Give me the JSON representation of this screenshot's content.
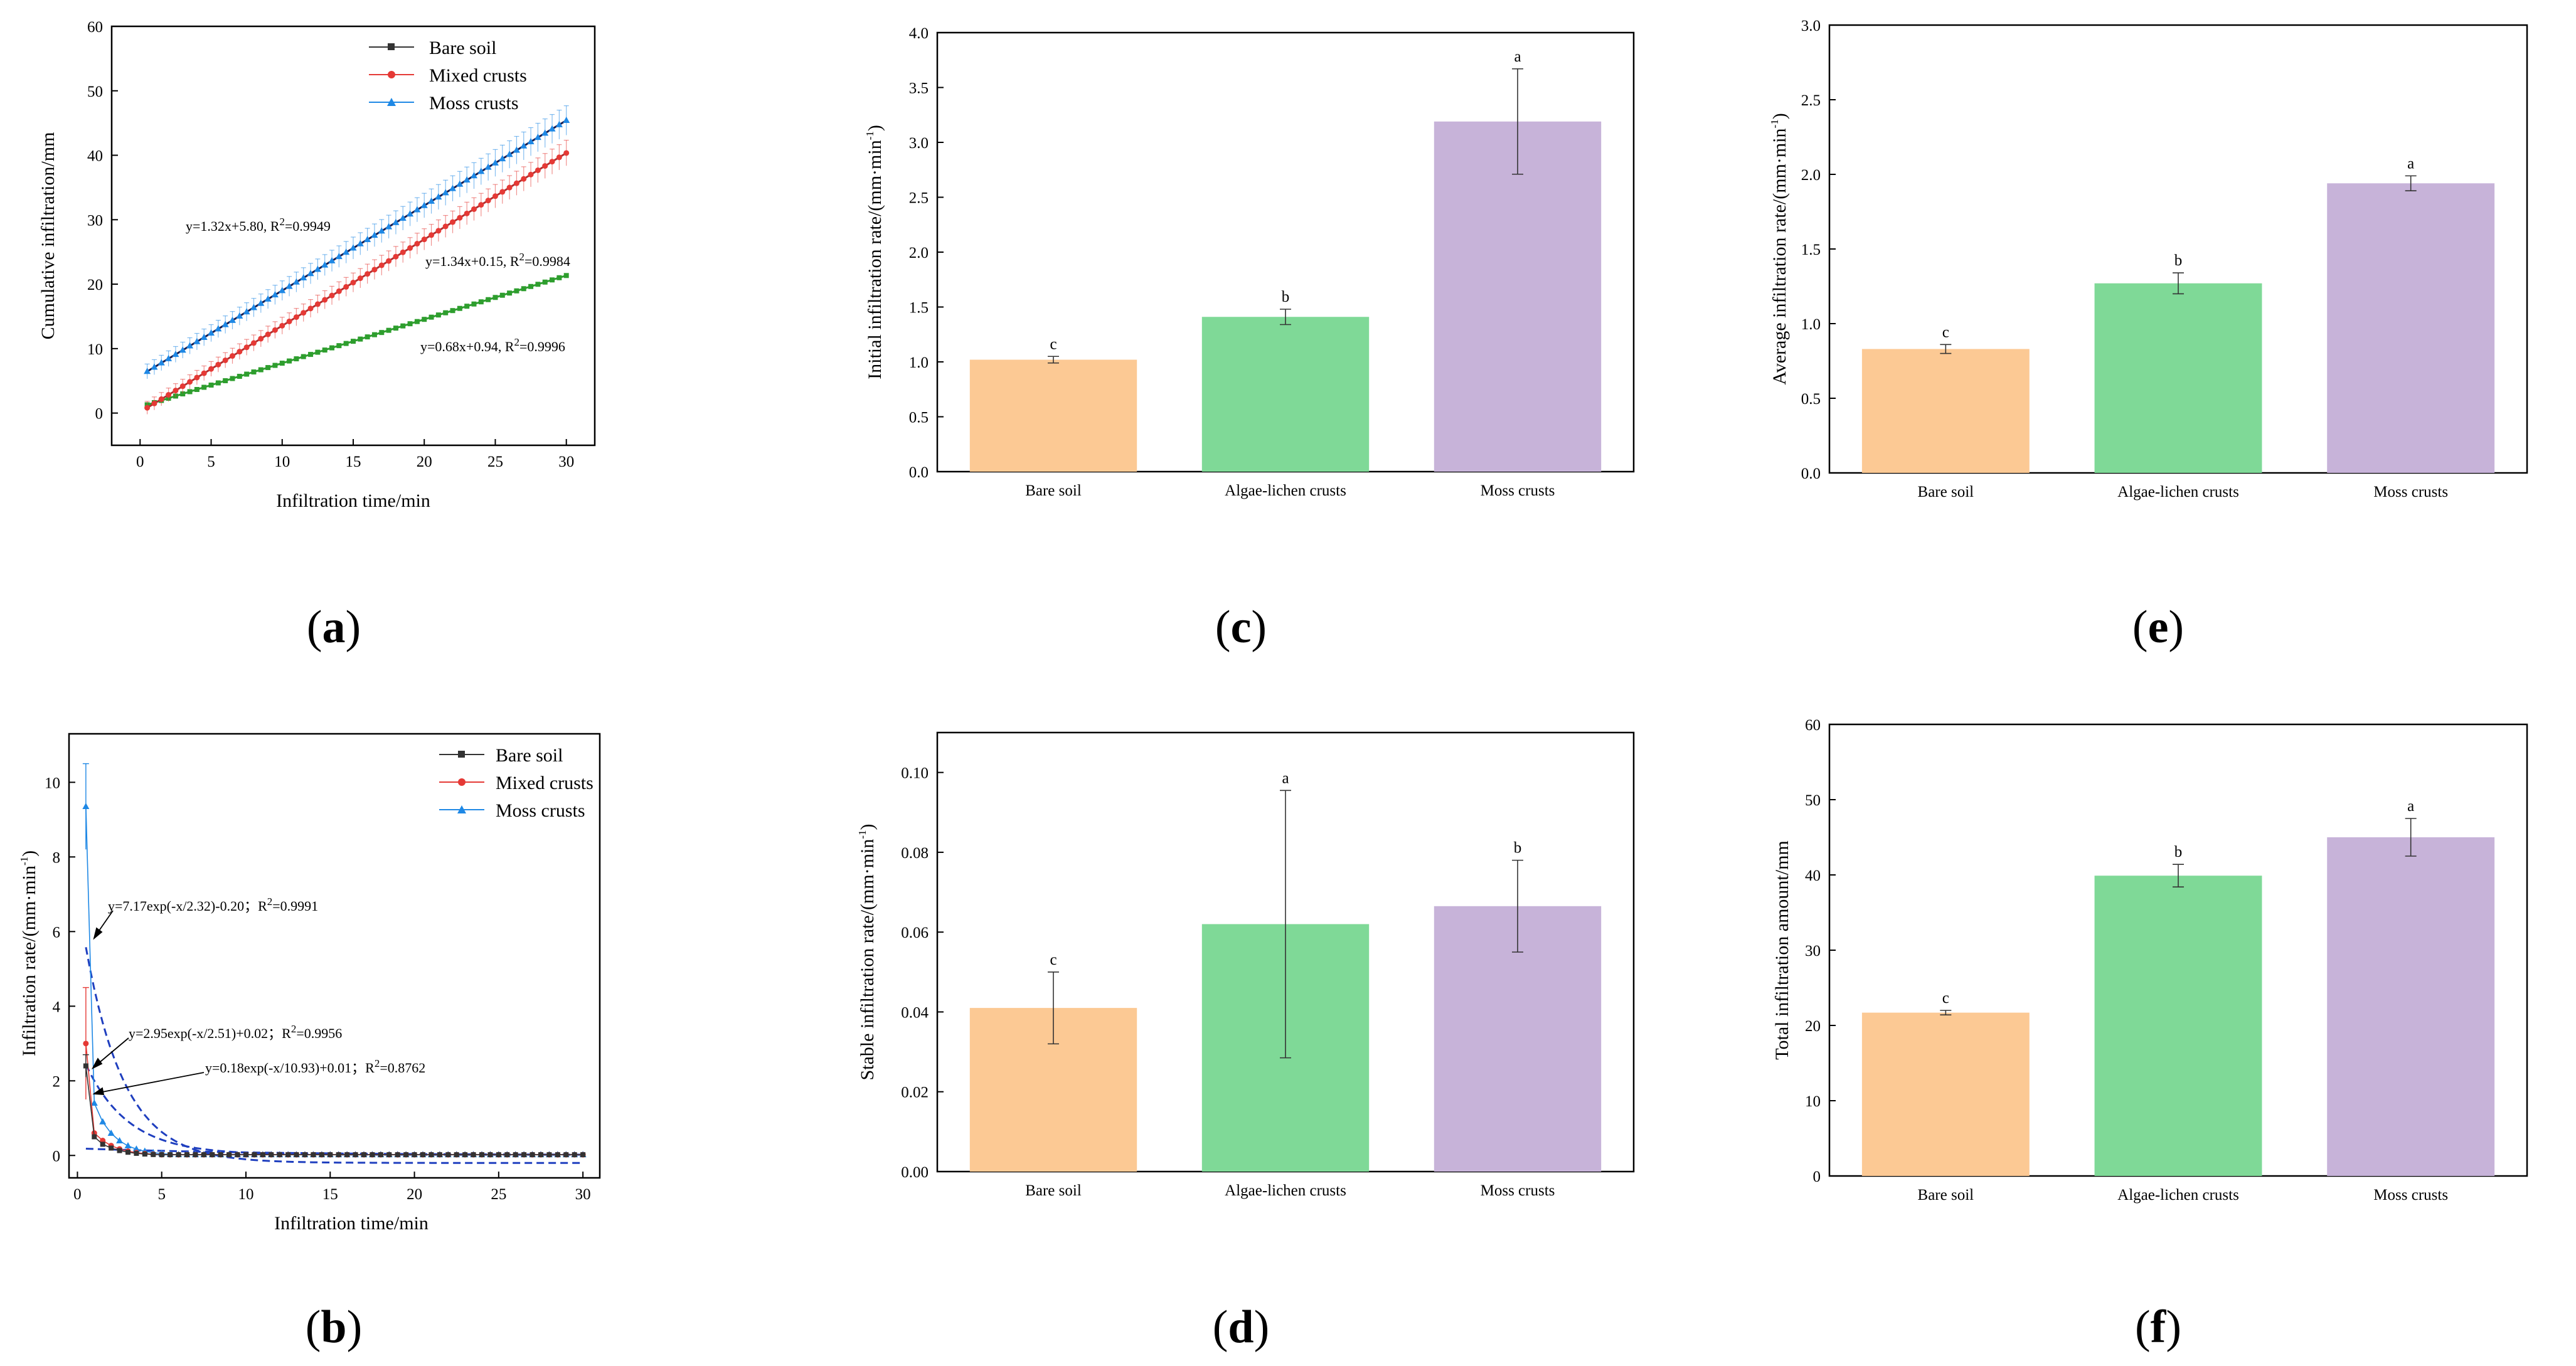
{
  "figure": {
    "panel_labels": {
      "a": {
        "open": "(",
        "letter": "a",
        "close": ")"
      },
      "b": {
        "open": "(",
        "letter": "b",
        "close": ")"
      },
      "c": {
        "open": "(",
        "letter": "c",
        "close": ")"
      },
      "d": {
        "open": "(",
        "letter": "d",
        "close": ")"
      },
      "e": {
        "open": "(",
        "letter": "e",
        "close": ")"
      },
      "f": {
        "open": "(",
        "letter": "f",
        "close": ")"
      }
    }
  },
  "chart_data": [
    {
      "id": "a",
      "type": "line",
      "xlabel": "Infiltration time/min",
      "ylabel": "Cumulative infiltration/mm",
      "xlim": [
        -2,
        32
      ],
      "ylim": [
        -5,
        60
      ],
      "xticks": [
        0,
        5,
        10,
        15,
        20,
        25,
        30
      ],
      "yticks": [
        0,
        10,
        20,
        30,
        40,
        50,
        60
      ],
      "legend": [
        "Bare soil",
        "Mixed crusts",
        "Moss crusts"
      ],
      "legend_position": "top-right",
      "colors": {
        "bare": "#333333",
        "mixed": "#e53935",
        "moss": "#1e88e5",
        "bare_fit": "#2e9e2e",
        "moss_fit": "#1a1a4a",
        "mixed_fit": "#b03030"
      },
      "series": [
        {
          "name": "Bare soil",
          "x_range": [
            0.5,
            30
          ],
          "fit_slope": 0.68,
          "fit_intercept": 0.94,
          "error": 0.2
        },
        {
          "name": "Mixed crusts",
          "x_range": [
            0.5,
            30
          ],
          "fit_slope": 1.34,
          "fit_intercept": 0.15,
          "error": 2.0
        },
        {
          "name": "Moss crusts",
          "x_range": [
            0.5,
            30
          ],
          "fit_slope": 1.32,
          "fit_intercept": 5.8,
          "error": 2.3
        }
      ],
      "equations": [
        {
          "before": "y=1.32x+5.80, R",
          "sup": "2",
          "after": "=0.9949"
        },
        {
          "before": "y=1.34x+0.15, R",
          "sup": "2",
          "after": "=0.9984"
        },
        {
          "before": "y=0.68x+0.94, R",
          "sup": "2",
          "after": "=0.9996"
        }
      ]
    },
    {
      "id": "b",
      "type": "line",
      "xlabel": "Infiltration time/min",
      "ylabel_parts": {
        "main": "Infiltration rate/(mm·min",
        "sup": "-1",
        "close": ")"
      },
      "xlim": [
        -0.5,
        31
      ],
      "ylim": [
        -0.6,
        11.3
      ],
      "xticks": [
        0,
        5,
        10,
        15,
        20,
        25,
        30
      ],
      "yticks": [
        0,
        2,
        4,
        6,
        8,
        10
      ],
      "legend": [
        "Bare soil",
        "Mixed crusts",
        "Moss crusts"
      ],
      "legend_position": "top-right",
      "colors": {
        "bare": "#333333",
        "mixed": "#e53935",
        "moss": "#1e88e5",
        "fit": "#1f3fbf"
      },
      "series": [
        {
          "name": "Moss crusts",
          "start": 9.35,
          "early": [
            [
              1.0,
              1.4
            ],
            [
              1.5,
              0.9
            ]
          ],
          "err0": 1.15
        },
        {
          "name": "Mixed crusts",
          "start": 3.0,
          "early": [
            [
              1.0,
              0.6
            ],
            [
              1.5,
              0.4
            ]
          ],
          "err0": 1.5
        },
        {
          "name": "Bare soil",
          "start": 2.4,
          "early": [
            [
              1.0,
              0.5
            ],
            [
              1.5,
              0.3
            ]
          ],
          "err0": 0.3
        }
      ],
      "fits": [
        {
          "A": 7.17,
          "tau": 2.32,
          "c": -0.2
        },
        {
          "A": 2.95,
          "tau": 2.51,
          "c": 0.02
        },
        {
          "A": 0.18,
          "tau": 10.93,
          "c": 0.01
        }
      ],
      "equations": [
        {
          "before": "y=7.17exp(-x/2.32)-0.20；R",
          "sup": "2",
          "after": "=0.9991"
        },
        {
          "before": "y=2.95exp(-x/2.51)+0.02；R",
          "sup": "2",
          "after": "=0.9956"
        },
        {
          "before": "y=0.18exp(-x/10.93)+0.01；R",
          "sup": "2",
          "after": "=0.8762"
        }
      ]
    },
    {
      "id": "c",
      "type": "bar",
      "categories": [
        "Bare soil",
        "Algae-lichen crusts",
        "Moss crusts"
      ],
      "values": [
        1.02,
        1.41,
        3.19
      ],
      "errors": [
        0.03,
        0.07,
        0.48
      ],
      "letters": [
        "c",
        "b",
        "a"
      ],
      "colors": [
        "#fcc994",
        "#7fd997",
        "#c7b3d9"
      ],
      "ylabel_parts": {
        "main": "Initial infiltration rate/(mm·min",
        "sup": "-1",
        "close": ")"
      },
      "ylim": [
        0,
        4.0
      ],
      "yticks": [
        "0.0",
        "0.5",
        "1.0",
        "1.5",
        "2.0",
        "2.5",
        "3.0",
        "3.5",
        "4.0"
      ]
    },
    {
      "id": "d",
      "type": "bar",
      "categories": [
        "Bare soil",
        "Algae-lichen crusts",
        "Moss crusts"
      ],
      "values": [
        0.041,
        0.062,
        0.0665
      ],
      "errors": [
        0.009,
        0.0335,
        0.0115
      ],
      "letters": [
        "c",
        "a",
        "b"
      ],
      "colors": [
        "#fcc994",
        "#7fd997",
        "#c7b3d9"
      ],
      "ylabel_parts": {
        "main": "Stable infiltration rate/(mm·min",
        "sup": "-1",
        "close": ")"
      },
      "ylim": [
        0,
        0.11
      ],
      "yticks": [
        "0.00",
        "0.02",
        "0.04",
        "0.06",
        "0.08",
        "0.10"
      ]
    },
    {
      "id": "e",
      "type": "bar",
      "categories": [
        "Bare soil",
        "Algae-lichen crusts",
        "Moss crusts"
      ],
      "values": [
        0.83,
        1.27,
        1.94
      ],
      "errors": [
        0.03,
        0.07,
        0.05
      ],
      "letters": [
        "c",
        "b",
        "a"
      ],
      "colors": [
        "#fcc994",
        "#7fd997",
        "#c7b3d9"
      ],
      "ylabel_parts": {
        "main": "Average infiltration rate/(mm·min",
        "sup": "-1",
        "close": ")"
      },
      "ylim": [
        0,
        3.0
      ],
      "yticks": [
        "0.0",
        "0.5",
        "1.0",
        "1.5",
        "2.0",
        "2.5",
        "3.0"
      ]
    },
    {
      "id": "f",
      "type": "bar",
      "categories": [
        "Bare soil",
        "Algae-lichen crusts",
        "Moss crusts"
      ],
      "values": [
        21.7,
        39.9,
        45.0
      ],
      "errors": [
        0.3,
        1.5,
        2.5
      ],
      "letters": [
        "c",
        "b",
        "a"
      ],
      "colors": [
        "#fcc994",
        "#7fd997",
        "#c7b3d9"
      ],
      "ylabel": "Total infiltration amount/mm",
      "ylim": [
        0,
        60
      ],
      "yticks": [
        "0",
        "10",
        "20",
        "30",
        "40",
        "50",
        "60"
      ]
    }
  ]
}
